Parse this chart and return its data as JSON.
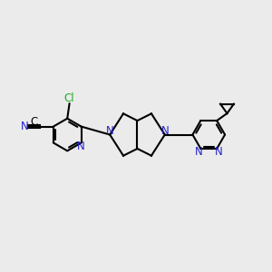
{
  "background_color": "#ebebeb",
  "bond_color": "#000000",
  "nitrogen_color": "#2222cc",
  "chlorine_color": "#22aa22",
  "line_width": 1.5,
  "figsize": [
    3.0,
    3.0
  ],
  "dpi": 100,
  "xlim": [
    0,
    10
  ],
  "ylim": [
    2,
    8
  ]
}
